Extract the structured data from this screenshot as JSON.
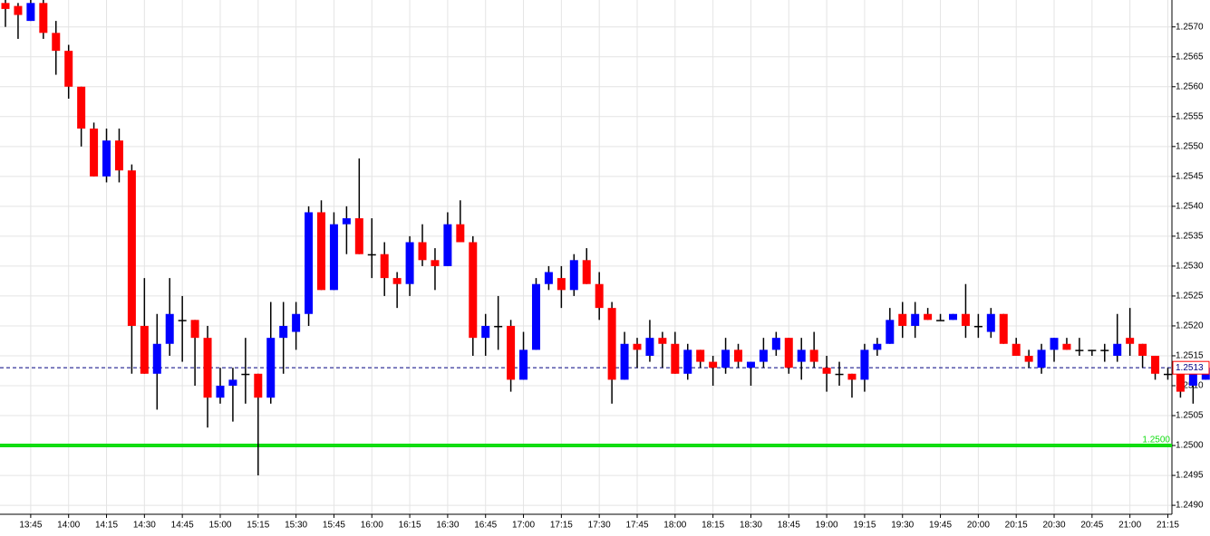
{
  "chart_data": {
    "type": "candlestick",
    "categories": [
      null,
      null,
      "13:45",
      null,
      null,
      "14:00",
      null,
      null,
      "14:15",
      null,
      null,
      "14:30",
      null,
      null,
      "14:45",
      null,
      null,
      "15:00",
      null,
      null,
      "15:15",
      null,
      null,
      "15:30",
      null,
      null,
      "15:45",
      null,
      null,
      "16:00",
      null,
      null,
      "16:15",
      null,
      null,
      "16:30",
      null,
      null,
      "16:45",
      null,
      null,
      "17:00",
      null,
      null,
      "17:15",
      null,
      null,
      "17:30",
      null,
      null,
      "17:45",
      null,
      null,
      "18:00",
      null,
      null,
      "18:15",
      null,
      null,
      "18:30",
      null,
      null,
      "18:45",
      null,
      null,
      "19:00",
      null,
      null,
      "19:15",
      null,
      null,
      "19:30",
      null,
      null,
      "19:45",
      null,
      null,
      "20:00",
      null,
      null,
      "20:15",
      null,
      null,
      "20:30",
      null,
      null,
      "20:45",
      null,
      null,
      "21:00",
      null,
      null,
      "21:15",
      null,
      null,
      null
    ],
    "open": [
      1.2574,
      1.25735,
      1.2571,
      1.2574,
      1.2569,
      1.2566,
      1.256,
      1.2553,
      1.2545,
      1.2551,
      1.2546,
      1.252,
      1.2512,
      1.2517,
      1.2521,
      1.2521,
      1.2518,
      1.2508,
      1.251,
      1.2512,
      1.2512,
      1.2508,
      1.2518,
      1.2519,
      1.2522,
      1.2539,
      1.2526,
      1.2537,
      1.2538,
      1.2532,
      1.2532,
      1.2528,
      1.2527,
      1.2534,
      1.2531,
      1.253,
      1.2537,
      1.2534,
      1.2518,
      1.252,
      1.252,
      1.2511,
      1.2516,
      1.2527,
      1.2528,
      1.2526,
      1.2531,
      1.2527,
      1.2523,
      1.2511,
      1.2517,
      1.2515,
      1.2518,
      1.2517,
      1.2512,
      1.2516,
      1.2514,
      1.2513,
      1.2516,
      1.2513,
      1.2514,
      1.2516,
      1.2518,
      1.2514,
      1.2516,
      1.2513,
      1.2512,
      1.2512,
      1.2511,
      1.2516,
      1.2517,
      1.2522,
      1.252,
      1.2522,
      1.2521,
      1.2521,
      1.2522,
      1.252,
      1.2519,
      1.2522,
      1.2517,
      1.2515,
      1.2513,
      1.2516,
      1.2517,
      1.2516,
      1.2516,
      1.2516,
      1.2515,
      1.2518,
      1.2517,
      1.2515,
      1.2512,
      1.2512,
      1.251,
      1.2511
    ],
    "high": [
      1.2575,
      1.2574,
      1.2575,
      1.2575,
      1.2571,
      1.2567,
      1.256,
      1.2554,
      1.2553,
      1.2553,
      1.2547,
      1.2528,
      1.2522,
      1.2528,
      1.2525,
      1.2521,
      1.252,
      1.2513,
      1.2513,
      1.2518,
      1.2512,
      1.2524,
      1.2524,
      1.2524,
      1.254,
      1.2541,
      1.2539,
      1.254,
      1.2548,
      1.2538,
      1.2534,
      1.2529,
      1.2535,
      1.2537,
      1.2533,
      1.2539,
      1.2541,
      1.2535,
      1.2522,
      1.2525,
      1.2521,
      1.2519,
      1.2528,
      1.253,
      1.253,
      1.2532,
      1.2533,
      1.2529,
      1.2524,
      1.2519,
      1.2518,
      1.2521,
      1.2519,
      1.2519,
      1.2517,
      1.2516,
      1.2515,
      1.2518,
      1.2517,
      1.2514,
      1.2518,
      1.2519,
      1.2518,
      1.2518,
      1.2519,
      1.2515,
      1.2514,
      1.2512,
      1.2517,
      1.2518,
      1.2523,
      1.2524,
      1.2524,
      1.2523,
      1.2522,
      1.2522,
      1.2527,
      1.2522,
      1.2523,
      1.2522,
      1.2518,
      1.2516,
      1.2517,
      1.2518,
      1.2518,
      1.2518,
      1.2516,
      1.2517,
      1.2522,
      1.2523,
      1.2517,
      1.2515,
      1.2513,
      1.2512,
      1.2514,
      1.2514
    ],
    "low": [
      1.257,
      1.2568,
      1.2571,
      1.2568,
      1.2562,
      1.2558,
      1.255,
      1.2545,
      1.2544,
      1.2544,
      1.2512,
      1.2512,
      1.2506,
      1.2515,
      1.2514,
      1.251,
      1.2503,
      1.2507,
      1.2504,
      1.2507,
      1.2495,
      1.2507,
      1.2512,
      1.2516,
      1.252,
      1.2526,
      1.2526,
      1.2532,
      1.2532,
      1.2528,
      1.2525,
      1.2523,
      1.2525,
      1.253,
      1.2526,
      1.253,
      1.2534,
      1.2515,
      1.2515,
      1.2516,
      1.2509,
      1.2511,
      1.2516,
      1.2526,
      1.2523,
      1.2525,
      1.2527,
      1.2521,
      1.2507,
      1.2511,
      1.2513,
      1.2514,
      1.2513,
      1.2512,
      1.2511,
      1.2513,
      1.251,
      1.2512,
      1.2513,
      1.251,
      1.2513,
      1.2515,
      1.2512,
      1.2511,
      1.2513,
      1.2509,
      1.251,
      1.2508,
      1.2509,
      1.2515,
      1.2517,
      1.2518,
      1.2518,
      1.2521,
      1.2521,
      1.2521,
      1.2518,
      1.2518,
      1.2518,
      1.2517,
      1.2515,
      1.2513,
      1.2512,
      1.2514,
      1.2516,
      1.2515,
      1.2515,
      1.2514,
      1.2514,
      1.2515,
      1.2513,
      1.2511,
      1.2511,
      1.2508,
      1.2507,
      1.2511
    ],
    "close": [
      1.2573,
      1.2572,
      1.2574,
      1.2569,
      1.2566,
      1.256,
      1.2553,
      1.2545,
      1.2551,
      1.2546,
      1.252,
      1.2512,
      1.2517,
      1.2522,
      1.2521,
      1.2518,
      1.2508,
      1.251,
      1.2511,
      1.2512,
      1.2508,
      1.2518,
      1.252,
      1.2522,
      1.2539,
      1.2526,
      1.2537,
      1.2538,
      1.2532,
      1.2532,
      1.2528,
      1.2527,
      1.2534,
      1.2531,
      1.253,
      1.2537,
      1.2534,
      1.2518,
      1.252,
      1.252,
      1.2511,
      1.2516,
      1.2527,
      1.2529,
      1.2526,
      1.2531,
      1.2527,
      1.2523,
      1.2511,
      1.2517,
      1.2516,
      1.2518,
      1.2517,
      1.2512,
      1.2516,
      1.2514,
      1.2513,
      1.2516,
      1.2514,
      1.2514,
      1.2516,
      1.2518,
      1.2513,
      1.2516,
      1.2514,
      1.2512,
      1.2512,
      1.2511,
      1.2516,
      1.2517,
      1.2521,
      1.252,
      1.2522,
      1.2521,
      1.2521,
      1.2522,
      1.252,
      1.252,
      1.2522,
      1.2517,
      1.2515,
      1.2514,
      1.2516,
      1.2518,
      1.2516,
      1.2516,
      1.2516,
      1.2516,
      1.2517,
      1.2517,
      1.2515,
      1.2512,
      1.2512,
      1.2509,
      1.2512,
      1.2513
    ],
    "up_color": "#0000ff",
    "down_color": "#ff0000",
    "ylim": [
      1.24885,
      1.25745
    ],
    "yticks": [
      {
        "value": 1.249,
        "label": "1.2490"
      },
      1.2495,
      {
        "value": 1.25,
        "label": "1.2500"
      },
      1.2505,
      {
        "value": 1.251,
        "label": "1.2510"
      },
      1.2515,
      {
        "value": 1.252,
        "label": "1.2520"
      },
      1.2525,
      {
        "value": 1.253,
        "label": "1.2530"
      },
      1.2535,
      {
        "value": 1.254,
        "label": "1.2540"
      },
      1.2545,
      {
        "value": 1.255,
        "label": "1.2550"
      },
      1.2555,
      {
        "value": 1.256,
        "label": "1.2560"
      },
      1.2565,
      {
        "value": 1.257,
        "label": "1.2570"
      }
    ],
    "grid": true,
    "level_line": {
      "value": 1.25,
      "label": "1.2500",
      "color": "#11dd11"
    },
    "current_price": {
      "value": 1.2513,
      "label": "1.2513",
      "color": "#000080"
    }
  }
}
